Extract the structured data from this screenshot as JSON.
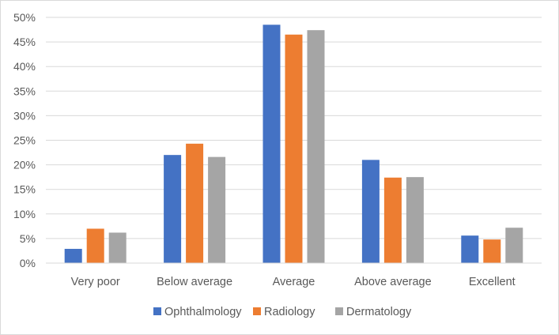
{
  "chart_data": {
    "type": "bar",
    "title": "",
    "xlabel": "",
    "ylabel": "",
    "categories": [
      "Very poor",
      "Below average",
      "Average",
      "Above average",
      "Excellent"
    ],
    "series": [
      {
        "name": "Ophthalmology",
        "color": "#4472C4",
        "values": [
          2.9,
          22.0,
          48.5,
          21.0,
          5.6
        ]
      },
      {
        "name": "Radiology",
        "color": "#ED7D31",
        "values": [
          7.0,
          24.3,
          46.5,
          17.4,
          4.8
        ]
      },
      {
        "name": "Dermatology",
        "color": "#A5A5A5",
        "values": [
          6.2,
          21.6,
          47.4,
          17.5,
          7.2
        ]
      }
    ],
    "ylim": [
      0,
      50
    ],
    "yticks": [
      0,
      5,
      10,
      15,
      20,
      25,
      30,
      35,
      40,
      45,
      50
    ],
    "ytick_labels": [
      "0%",
      "5%",
      "10%",
      "15%",
      "20%",
      "25%",
      "30%",
      "35%",
      "40%",
      "45%",
      "50%"
    ],
    "grid": true,
    "legend_position": "bottom"
  }
}
